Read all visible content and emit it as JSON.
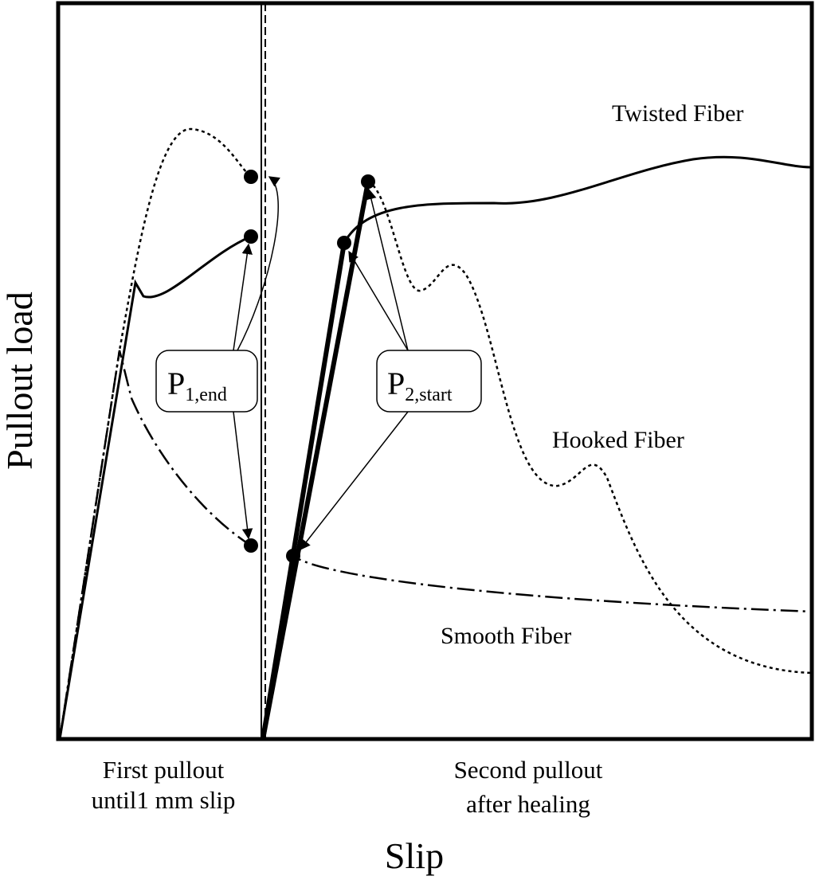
{
  "axes": {
    "y_label": "Pullout load",
    "x_label": "Slip"
  },
  "regions": [
    {
      "lines": [
        "First pullout",
        "until1 mm slip"
      ]
    },
    {
      "lines": [
        "Second pullout",
        "after healing"
      ]
    }
  ],
  "curves": {
    "twisted": "Twisted Fiber",
    "hooked": "Hooked Fiber",
    "smooth": "Smooth Fiber"
  },
  "callouts": [
    {
      "symbol": "P",
      "subscript": "1,end"
    },
    {
      "symbol": "P",
      "subscript": "2,start"
    }
  ]
}
